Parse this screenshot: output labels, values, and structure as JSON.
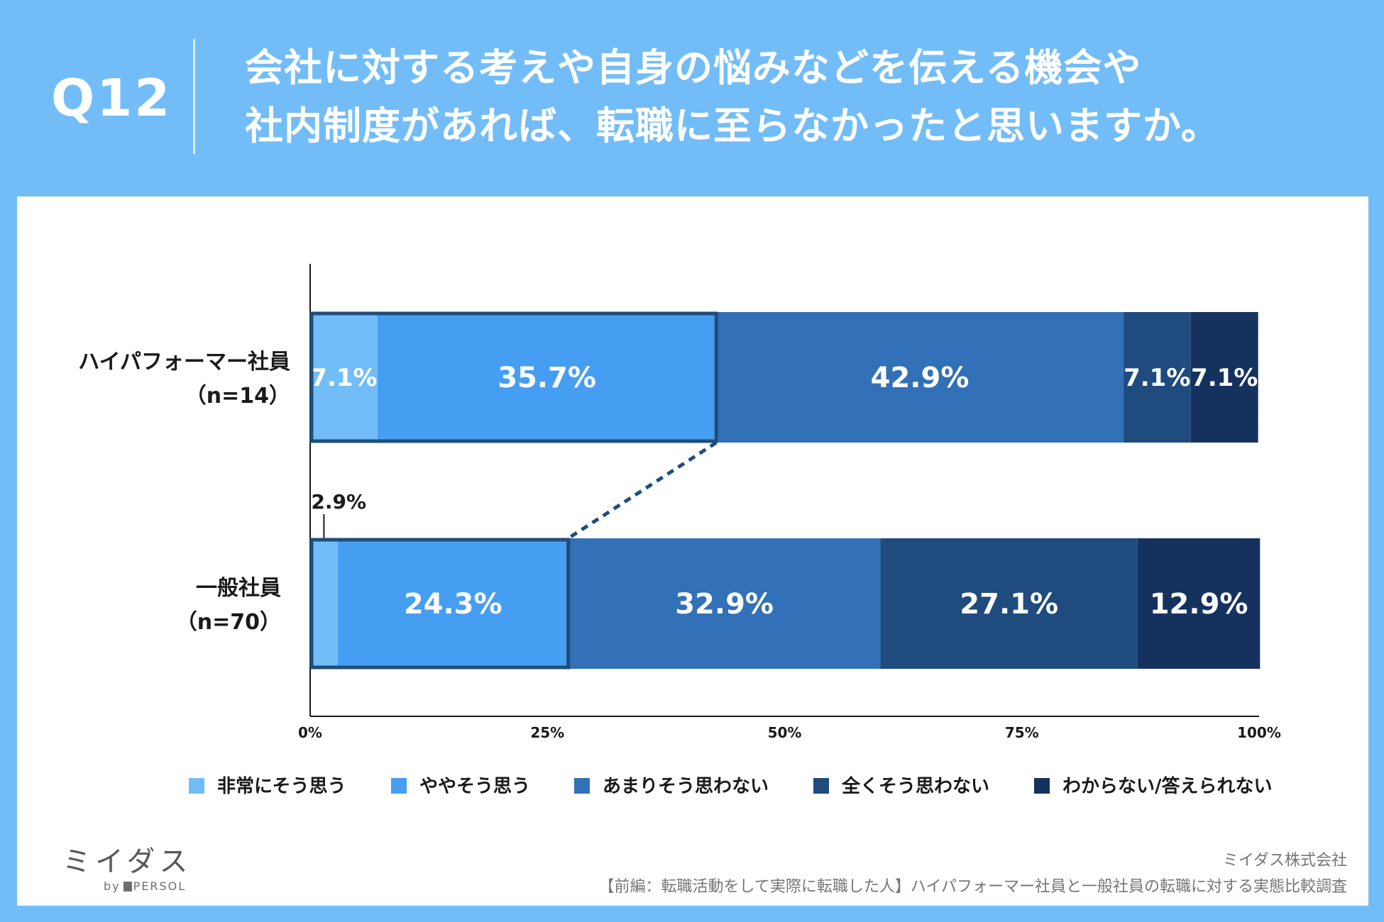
{
  "header": {
    "question_number": "Q12",
    "title_line1": "会社に対する考えや自身の悩みなどを伝える機会や",
    "title_line2": "社内制度があれば、転職に至らなかったと思いますか。"
  },
  "colors": {
    "background": "#72bdf8",
    "card": "#ffffff",
    "dark_text": "#1a1a1a",
    "highlight_border": "#1f4e79"
  },
  "chart_data": {
    "type": "bar",
    "orientation": "horizontal",
    "stacked": true,
    "categories": [
      "ハイパフォーマー社員\n（n=14）",
      "一般社員\n（n=70）"
    ],
    "category_lines": [
      [
        "ハイパフォーマー社員",
        "（n=14）"
      ],
      [
        "一般社員",
        "（n=70）"
      ]
    ],
    "series": [
      {
        "name": "非常にそう思う",
        "values": [
          7.1,
          2.9
        ],
        "labels": [
          "7.1%",
          "2.9%"
        ],
        "color": "#72bdf8"
      },
      {
        "name": "ややそう思う",
        "values": [
          35.7,
          24.3
        ],
        "labels": [
          "35.7%",
          "24.3%"
        ],
        "color": "#469ef3"
      },
      {
        "name": "あまりそう思わない",
        "values": [
          42.9,
          32.9
        ],
        "labels": [
          "42.9%",
          "32.9%"
        ],
        "color": "#3270b7"
      },
      {
        "name": "全くそう思わない",
        "values": [
          7.1,
          27.1
        ],
        "labels": [
          "7.1%",
          "27.1%"
        ],
        "color": "#1f4b7e"
      },
      {
        "name": "わからない/答えられない",
        "values": [
          7.1,
          12.9
        ],
        "labels": [
          "7.1%",
          "12.9%"
        ],
        "color": "#15325f"
      }
    ],
    "xlim": [
      0,
      100
    ],
    "xticks": [
      0,
      25,
      50,
      75,
      100
    ],
    "xtick_labels": [
      "0%",
      "25%",
      "50%",
      "75%",
      "100%"
    ],
    "legend_position": "bottom",
    "highlight": {
      "description": "非常にそう思う + ややそう思う",
      "series_indices": [
        0,
        1
      ],
      "totals": [
        42.8,
        27.2
      ],
      "connector": "dashed"
    },
    "outside_labels": [
      {
        "category_index": 1,
        "series_index": 0,
        "label": "2.9%"
      }
    ]
  },
  "footer": {
    "logo_text": "ミイダス",
    "logo_by": "by",
    "logo_brand": "PERSOL",
    "company": "ミイダス株式会社",
    "survey_title": "【前編：転職活動をして実際に転職した人】ハイパフォーマー社員と一般社員の転職に対する実態比較調査"
  }
}
